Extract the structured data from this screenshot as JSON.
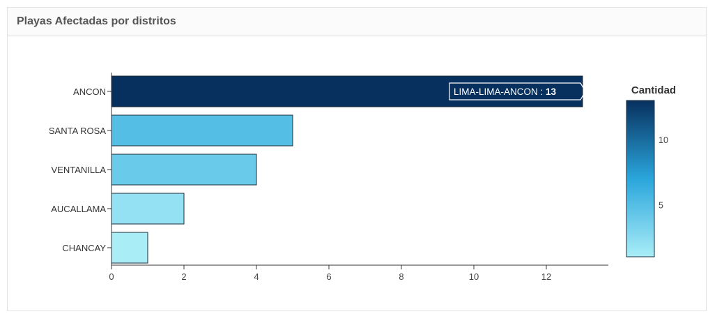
{
  "panel": {
    "title": "Playas Afectadas por distritos"
  },
  "chart_data": {
    "type": "bar",
    "orientation": "horizontal",
    "title": "",
    "xlabel": "",
    "ylabel": "",
    "categories": [
      "ANCON",
      "SANTA ROSA",
      "VENTANILLA",
      "AUCALLAMA",
      "CHANCAY"
    ],
    "values": [
      13,
      5,
      4,
      2,
      1
    ],
    "xlim": [
      0,
      13
    ],
    "xticks": [
      0,
      2,
      4,
      6,
      8,
      10,
      12
    ],
    "grid": false,
    "tooltip": {
      "label": "LIMA-LIMA-ANCON",
      "separator": " : ",
      "value": "13"
    },
    "legend": {
      "title": "Cantidad",
      "type": "colorbar",
      "position": "right",
      "min": 1,
      "max": 13,
      "ticks": [
        5,
        10
      ],
      "color_low": "#a9edf7",
      "color_mid": "#2aa6dc",
      "color_high": "#07305e"
    },
    "bar_stroke": "#1c2c3c"
  }
}
